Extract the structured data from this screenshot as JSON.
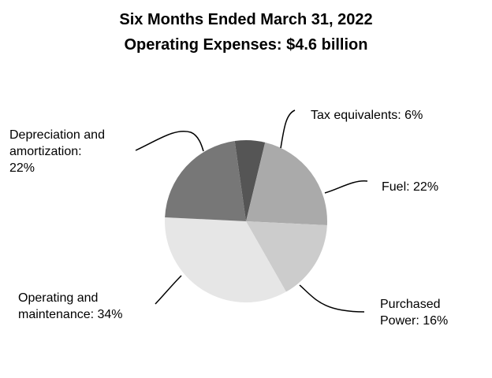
{
  "title_line_1": "Six Months Ended March 31, 2022",
  "title_line_2": "Operating Expenses: $4.6 billion",
  "chart_data": {
    "type": "pie",
    "title": "Six Months Ended March 31, 2022 Operating Expenses: $4.6 billion",
    "unit": "%",
    "slices": [
      {
        "key": "tax",
        "label_lines": [
          "Tax equivalents: 6%"
        ],
        "value": 6,
        "color": "#555555"
      },
      {
        "key": "fuel",
        "label_lines": [
          "Fuel: 22%"
        ],
        "value": 22,
        "color": "#aaaaaa"
      },
      {
        "key": "power",
        "label_lines": [
          "Purchased",
          "Power: 16%"
        ],
        "value": 16,
        "color": "#cccccc"
      },
      {
        "key": "om",
        "label_lines": [
          "Operating and",
          "maintenance: 34%"
        ],
        "value": 34,
        "color": "#e6e6e6"
      },
      {
        "key": "dep",
        "label_lines": [
          "Depreciation and",
          "amortization:",
          "22%"
        ],
        "value": 22,
        "color": "#777777"
      }
    ],
    "legend": "none"
  }
}
